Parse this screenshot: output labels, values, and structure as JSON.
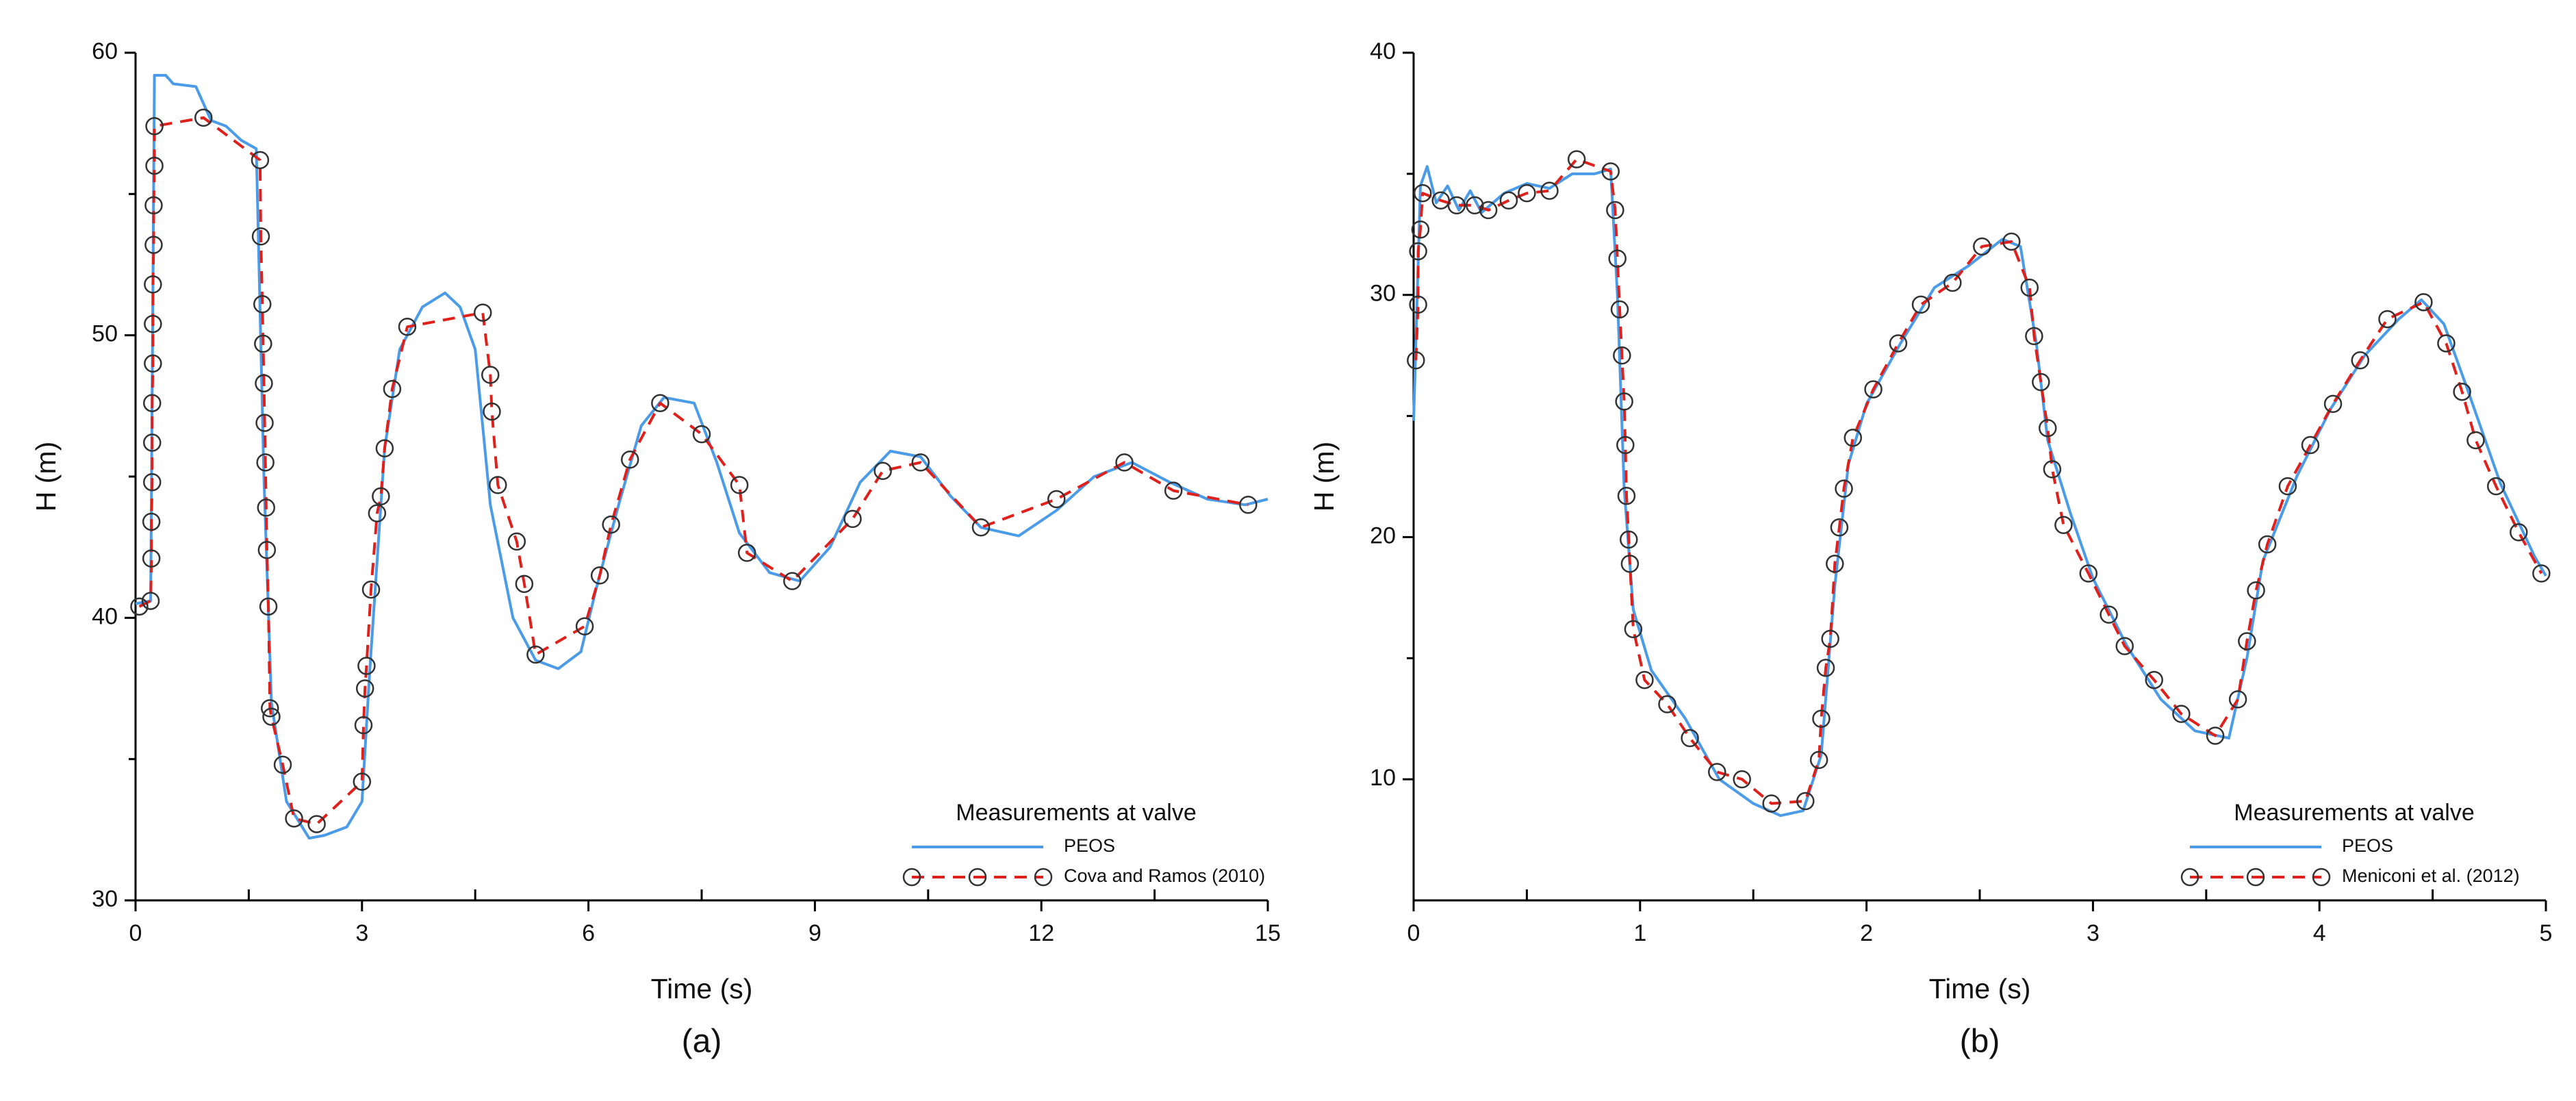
{
  "chart_data": [
    {
      "type": "line",
      "caption": "(a)",
      "x_label": "Time (s)",
      "y_label": "H (m)",
      "legend_title": "Measurements at valve",
      "legend": "lower right",
      "xlim": [
        0,
        15
      ],
      "ylim": [
        30,
        60
      ],
      "xticks": [
        0,
        3,
        6,
        9,
        12,
        15
      ],
      "yticks": [
        30,
        40,
        50,
        60
      ],
      "xminorticks": [
        1.5,
        4.5,
        7.5,
        10.5,
        13.5
      ],
      "yminorticks": [
        35,
        45,
        55
      ],
      "series": [
        {
          "name": "PEOS",
          "color": "#4a9be8",
          "style": "solid",
          "x": [
            0,
            0.2,
            0.25,
            0.4,
            0.5,
            0.8,
            1.0,
            1.2,
            1.4,
            1.6,
            1.7,
            1.8,
            2.0,
            2.3,
            2.5,
            2.8,
            3.0,
            3.1,
            3.3,
            3.5,
            3.8,
            4.1,
            4.3,
            4.5,
            4.7,
            5.0,
            5.3,
            5.6,
            5.9,
            6.1,
            6.4,
            6.7,
            7.0,
            7.4,
            7.7,
            8.0,
            8.4,
            8.8,
            9.2,
            9.6,
            10.0,
            10.4,
            10.8,
            11.2,
            11.7,
            12.2,
            12.7,
            13.2,
            13.7,
            14.2,
            14.7,
            15
          ],
          "values": [
            40.5,
            40.6,
            59.2,
            59.2,
            58.9,
            58.8,
            57.6,
            57.4,
            56.9,
            56.6,
            45,
            37,
            33.5,
            32.2,
            32.3,
            32.6,
            33.5,
            38,
            46,
            49.5,
            51,
            51.5,
            51,
            49.5,
            44,
            40,
            38.5,
            38.2,
            38.8,
            41,
            44,
            46.8,
            47.8,
            47.6,
            45.5,
            43,
            41.6,
            41.3,
            42.5,
            44.8,
            45.9,
            45.7,
            44.3,
            43.2,
            42.9,
            43.8,
            45,
            45.5,
            44.8,
            44.2,
            44.0,
            44.2
          ]
        },
        {
          "name": "Cova and Ramos (2010)",
          "color": "#e0201b",
          "style": "dashed",
          "marker": "circle",
          "x": [
            0.05,
            0.2,
            0.21,
            0.21,
            0.22,
            0.22,
            0.22,
            0.23,
            0.23,
            0.23,
            0.24,
            0.24,
            0.25,
            0.25,
            0.9,
            1.65,
            1.66,
            1.68,
            1.69,
            1.7,
            1.71,
            1.72,
            1.73,
            1.74,
            1.76,
            1.78,
            1.8,
            1.95,
            2.1,
            2.4,
            3.0,
            3.02,
            3.04,
            3.06,
            3.12,
            3.2,
            3.25,
            3.3,
            3.4,
            3.6,
            4.6,
            4.7,
            4.72,
            4.8,
            5.05,
            5.15,
            5.3,
            5.95,
            6.15,
            6.3,
            6.55,
            6.95,
            7.5,
            8.0,
            8.1,
            8.7,
            9.5,
            9.9,
            10.4,
            11.2,
            12.2,
            13.1,
            13.75,
            14.74
          ],
          "values": [
            40.4,
            40.6,
            42.1,
            43.4,
            44.8,
            46.2,
            47.6,
            49.0,
            50.4,
            51.8,
            53.2,
            54.6,
            56.0,
            57.4,
            57.7,
            56.2,
            53.5,
            51.1,
            49.7,
            48.3,
            46.9,
            45.5,
            43.9,
            42.4,
            40.4,
            36.8,
            36.5,
            34.8,
            32.9,
            32.7,
            34.2,
            36.2,
            37.5,
            38.3,
            41.0,
            43.7,
            44.3,
            46.0,
            48.1,
            50.3,
            50.8,
            48.6,
            47.3,
            44.7,
            42.7,
            41.2,
            38.7,
            39.7,
            41.5,
            43.3,
            45.6,
            47.6,
            46.5,
            44.7,
            42.3,
            41.3,
            43.5,
            45.2,
            45.5,
            43.2,
            44.2,
            45.5,
            44.5,
            44.0
          ]
        }
      ]
    },
    {
      "type": "line",
      "caption": "(b)",
      "x_label": "Time (s)",
      "y_label": "H (m)",
      "legend_title": "Measurements at valve",
      "legend": "lower right",
      "xlim": [
        0,
        5
      ],
      "ylim": [
        5,
        40
      ],
      "xticks": [
        0,
        1,
        2,
        3,
        4,
        5
      ],
      "yticks": [
        10,
        20,
        30,
        40
      ],
      "xminorticks": [
        0.5,
        1.5,
        2.5,
        3.5,
        4.5
      ],
      "yminorticks": [
        15,
        25,
        35
      ],
      "series": [
        {
          "name": "PEOS",
          "color": "#4a9be8",
          "style": "solid",
          "x": [
            0,
            0.03,
            0.06,
            0.1,
            0.15,
            0.2,
            0.25,
            0.3,
            0.4,
            0.5,
            0.6,
            0.7,
            0.8,
            0.87,
            0.9,
            0.93,
            0.97,
            1.05,
            1.2,
            1.35,
            1.5,
            1.62,
            1.72,
            1.8,
            1.86,
            1.92,
            2.0,
            2.15,
            2.3,
            2.45,
            2.6,
            2.68,
            2.75,
            2.8,
            2.9,
            3.0,
            3.15,
            3.3,
            3.45,
            3.6,
            3.68,
            3.75,
            3.9,
            4.05,
            4.2,
            4.35,
            4.45,
            4.55,
            4.65,
            4.8,
            4.95,
            5.0
          ],
          "values": [
            24.8,
            34.5,
            35.3,
            33.8,
            34.5,
            33.5,
            34.3,
            33.4,
            34.2,
            34.6,
            34.4,
            35.0,
            35.0,
            35.2,
            30,
            22,
            17,
            14.5,
            12.5,
            10,
            9,
            8.5,
            8.7,
            11,
            18,
            23,
            25.5,
            28,
            30.3,
            31.2,
            32.3,
            32,
            28,
            24,
            21,
            18.3,
            15.5,
            13.3,
            12,
            11.7,
            15,
            19,
            22.5,
            25.3,
            27.5,
            29.0,
            29.8,
            28.8,
            26.2,
            22.2,
            19.2,
            18.4
          ]
        },
        {
          "name": "Meniconi et al. (2012)",
          "color": "#e0201b",
          "style": "dashed",
          "marker": "circle",
          "x": [
            0.01,
            0.02,
            0.02,
            0.03,
            0.04,
            0.12,
            0.19,
            0.27,
            0.33,
            0.42,
            0.5,
            0.6,
            0.72,
            0.87,
            0.89,
            0.9,
            0.91,
            0.92,
            0.93,
            0.935,
            0.94,
            0.95,
            0.955,
            0.97,
            1.02,
            1.12,
            1.22,
            1.34,
            1.45,
            1.58,
            1.73,
            1.79,
            1.8,
            1.82,
            1.84,
            1.86,
            1.88,
            1.9,
            1.94,
            2.03,
            2.14,
            2.24,
            2.38,
            2.51,
            2.64,
            2.72,
            2.74,
            2.77,
            2.8,
            2.82,
            2.87,
            2.98,
            3.07,
            3.14,
            3.27,
            3.39,
            3.54,
            3.64,
            3.68,
            3.72,
            3.77,
            3.86,
            3.96,
            4.06,
            4.18,
            4.3,
            4.46,
            4.56,
            4.63,
            4.69,
            4.78,
            4.88,
            4.98
          ],
          "values": [
            27.3,
            29.6,
            31.8,
            32.7,
            34.2,
            33.9,
            33.7,
            33.7,
            33.5,
            33.9,
            34.2,
            34.3,
            35.6,
            35.1,
            33.5,
            31.5,
            29.4,
            27.5,
            25.6,
            23.8,
            21.7,
            19.9,
            18.9,
            16.2,
            14.1,
            13.1,
            11.7,
            10.3,
            10.0,
            9.0,
            9.1,
            10.8,
            12.5,
            14.6,
            15.8,
            18.9,
            20.4,
            22.0,
            24.1,
            26.1,
            28.0,
            29.6,
            30.5,
            32.0,
            32.2,
            30.3,
            28.3,
            26.4,
            24.5,
            22.8,
            20.5,
            18.5,
            16.8,
            15.5,
            14.1,
            12.7,
            11.8,
            13.3,
            15.7,
            17.8,
            19.7,
            22.1,
            23.8,
            25.5,
            27.3,
            29.0,
            29.7,
            28.0,
            26.0,
            24.0,
            22.1,
            20.2,
            18.5
          ]
        }
      ]
    }
  ]
}
